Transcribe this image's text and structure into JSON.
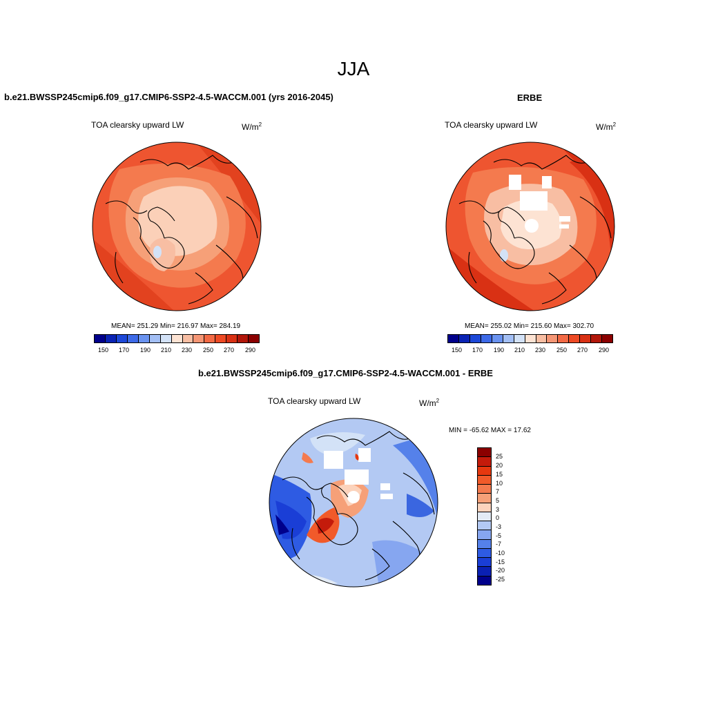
{
  "figure": {
    "title": "JJA",
    "panels": [
      {
        "title": "b.e21.BWSSP245cmip6.f09_g17.CMIP6-SSP2-4.5-WACCM.001 (yrs 2016-2045)",
        "variable": "TOA clearsky upward LW",
        "units": "W/m",
        "units_sup": "2",
        "stats": "MEAN= 251.29  Min= 216.97  Max= 284.19",
        "colorbar_ticks": [
          "150",
          "170",
          "190",
          "210",
          "230",
          "250",
          "270",
          "290"
        ]
      },
      {
        "title": "ERBE",
        "variable": "TOA clearsky upward LW",
        "units": "W/m",
        "units_sup": "2",
        "stats": "MEAN= 255.02  Min= 215.60  Max= 302.70",
        "colorbar_ticks": [
          "150",
          "170",
          "190",
          "210",
          "230",
          "250",
          "270",
          "290"
        ]
      },
      {
        "title": "b.e21.BWSSP245cmip6.f09_g17.CMIP6-SSP2-4.5-WACCM.001 - ERBE",
        "variable": "TOA clearsky upward LW",
        "units": "W/m",
        "units_sup": "2",
        "stats": "MIN = -65.62 MAX =  17.62",
        "colorbar_ticks": [
          "25",
          "20",
          "15",
          "10",
          "7",
          "5",
          "3",
          "0",
          "-3",
          "-5",
          "-7",
          "-10",
          "-15",
          "-20",
          "-25"
        ]
      }
    ]
  },
  "colors": {
    "abs_scale": [
      "#00008b",
      "#0a23b4",
      "#1d48d8",
      "#3d6ae8",
      "#6a93f0",
      "#a3bff5",
      "#d3e2f7",
      "#fde3d3",
      "#f8bea3",
      "#f59675",
      "#f36a45",
      "#ee4a24",
      "#d93114",
      "#b2170a",
      "#8b0000"
    ],
    "diff_scale": [
      "#8b0000",
      "#c41b0b",
      "#e6380f",
      "#f15a2a",
      "#f47a4e",
      "#f6a078",
      "#fcd3bc",
      "#e3ebf5",
      "#b3c9f3",
      "#86a6f0",
      "#5581ea",
      "#2e5be3",
      "#1a3ed6",
      "#0a20b3",
      "#00008b"
    ],
    "inner_light": "#f8c8b0",
    "mid_orange": "#f47a4e",
    "outer_red": "#ee5530",
    "diff_bg": "#a9c2f0",
    "diff_blue": "#3a66e0"
  }
}
